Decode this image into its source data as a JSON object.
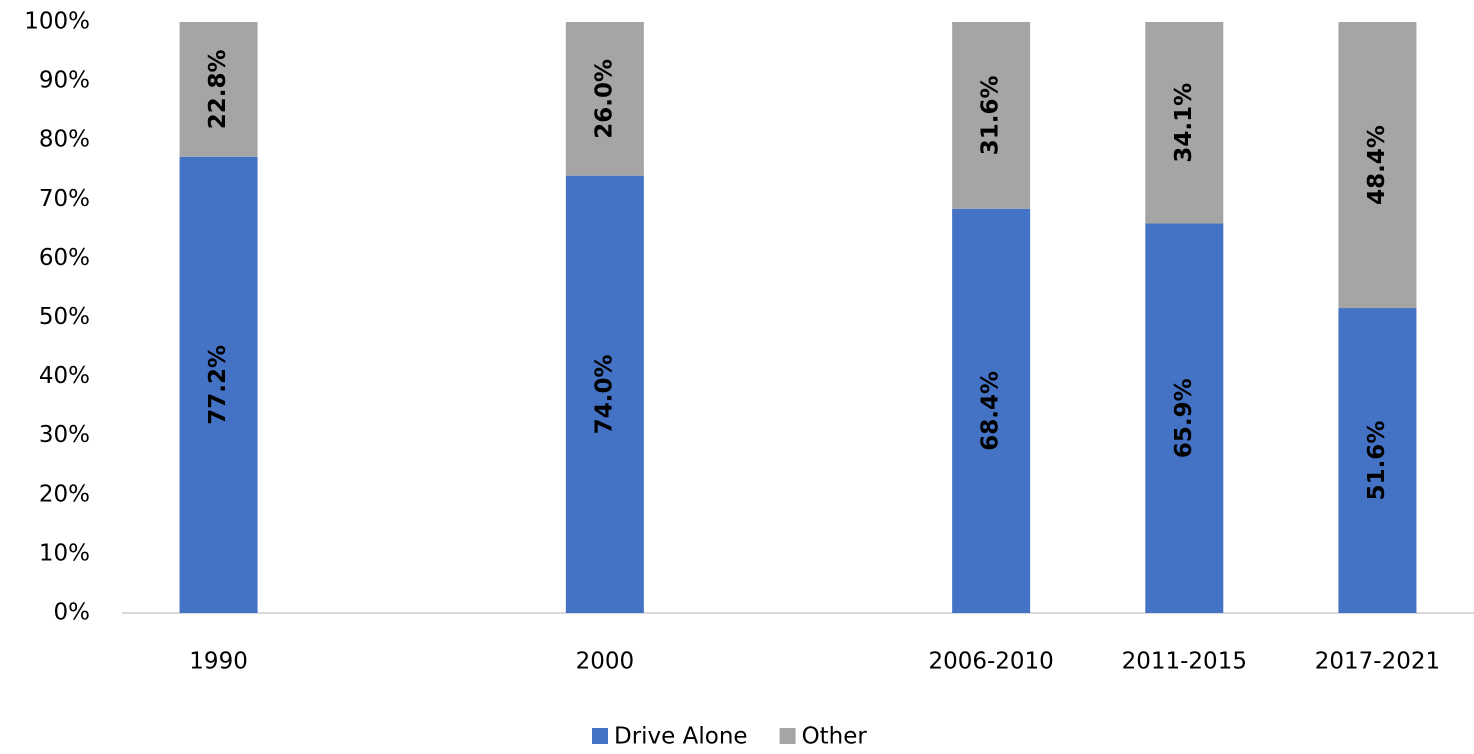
{
  "chart_data": {
    "type": "stacked_bar",
    "categories": [
      "1990",
      "2000",
      "2006-2010",
      "2011-2015",
      "2017-2021"
    ],
    "series": [
      {
        "name": "Drive Alone",
        "color": "#4472c4",
        "values": [
          77.2,
          74.0,
          68.4,
          65.9,
          51.6
        ],
        "value_labels": [
          "77.2%",
          "74.0%",
          "68.4%",
          "65.9%",
          "51.6%"
        ]
      },
      {
        "name": "Other",
        "color": "#a5a5a5",
        "values": [
          22.8,
          26.0,
          31.6,
          34.1,
          48.4
        ],
        "value_labels": [
          "22.8%",
          "26.0%",
          "31.6%",
          "34.1%",
          "48.4%"
        ]
      }
    ],
    "ylim": [
      0,
      100
    ],
    "yticks": [
      {
        "value": 0,
        "label": "0%"
      },
      {
        "value": 10,
        "label": "10%"
      },
      {
        "value": 20,
        "label": "20%"
      },
      {
        "value": 30,
        "label": "30%"
      },
      {
        "value": 40,
        "label": "40%"
      },
      {
        "value": 50,
        "label": "50%"
      },
      {
        "value": 60,
        "label": "60%"
      },
      {
        "value": 70,
        "label": "70%"
      },
      {
        "value": 80,
        "label": "80%"
      },
      {
        "value": 90,
        "label": "90%"
      },
      {
        "value": 100,
        "label": "100%"
      }
    ],
    "grid": false,
    "legend": "bottom"
  }
}
